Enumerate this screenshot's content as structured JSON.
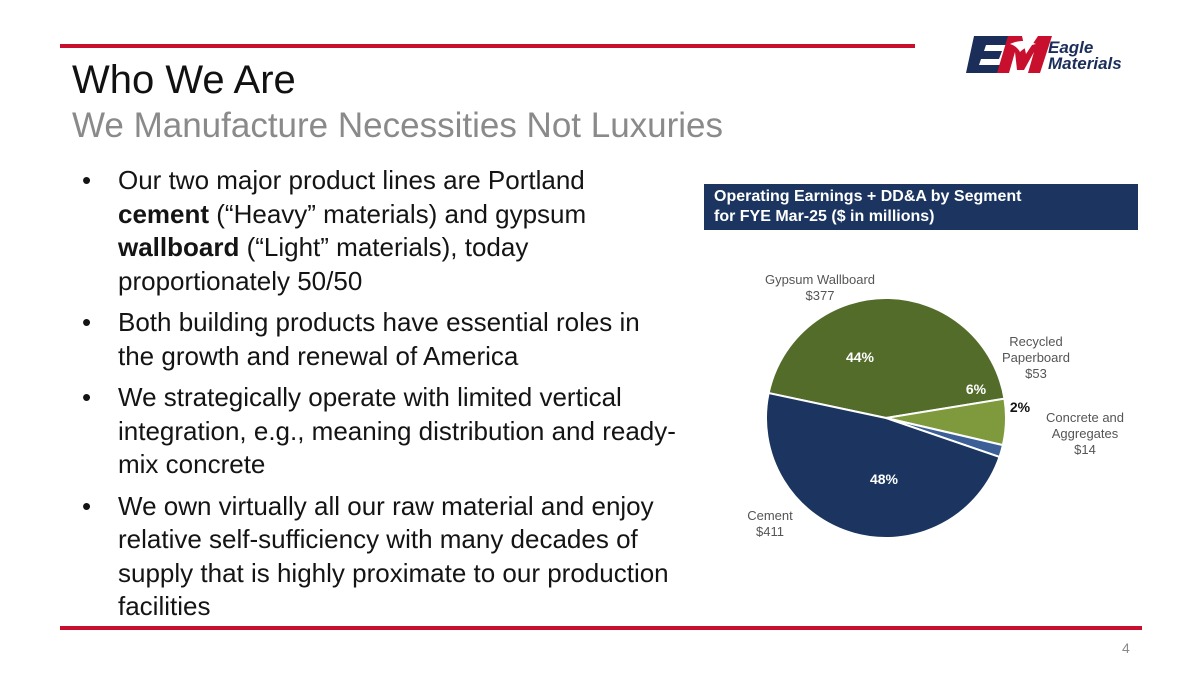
{
  "slide": {
    "title": "Who We Are",
    "subtitle": "We Manufacture Necessities Not Luxuries",
    "page_number": "4"
  },
  "logo": {
    "line1": "Eagle",
    "line2": "Materials",
    "brand_navy": "#1b2e5a",
    "brand_red": "#c8102e"
  },
  "bullets": [
    {
      "segments": [
        {
          "text": "Our two major product lines are Portland ",
          "bold": false
        },
        {
          "text": "cement",
          "bold": true
        },
        {
          "text": " (“Heavy” materials) and gypsum ",
          "bold": false
        },
        {
          "text": "wallboard",
          "bold": true
        },
        {
          "text": " (“Light” materials), today proportionately 50/50",
          "bold": false
        }
      ]
    },
    {
      "segments": [
        {
          "text": "Both building products have essential roles in the growth and renewal of America",
          "bold": false
        }
      ]
    },
    {
      "segments": [
        {
          "text": "We strategically operate with limited vertical integration, e.g., meaning distribution and ready-mix concrete",
          "bold": false
        }
      ]
    },
    {
      "segments": [
        {
          "text": "We own virtually all our raw material and enjoy relative self-sufficiency with many decades of supply that is highly proximate to our production facilities",
          "bold": false
        }
      ]
    }
  ],
  "chart_header": {
    "line1": "Operating Earnings + DD&A by Segment",
    "line2": "for FYE Mar-25 ($ in millions)"
  },
  "chart_data": {
    "type": "pie",
    "title": "Operating Earnings + DD&A by Segment for FYE Mar-25 ($ in millions)",
    "slices": [
      {
        "label": "Gypsum Wallboard",
        "value": 377,
        "value_label": "$377",
        "percent_label": "44%",
        "color": "#536c2a"
      },
      {
        "label": "Recycled Paperboard",
        "value": 53,
        "value_label": "$53",
        "percent_label": "6%",
        "color": "#7e9a3c"
      },
      {
        "label": "Concrete and Aggregates",
        "value": 14,
        "value_label": "$14",
        "percent_label": "2%",
        "color": "#3b5f96"
      },
      {
        "label": "Cement",
        "value": 411,
        "value_label": "$411",
        "percent_label": "48%",
        "color": "#1b3560"
      }
    ]
  }
}
